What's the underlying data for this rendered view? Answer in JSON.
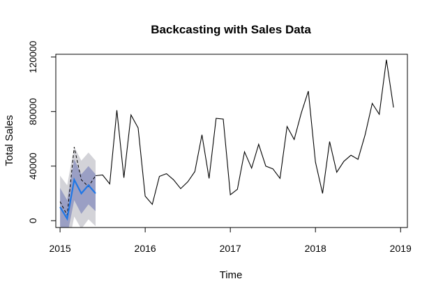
{
  "chart_data": {
    "type": "line",
    "title": "Backcasting with Sales Data",
    "xlabel": "Time",
    "ylabel": "Total Sales",
    "xlim": [
      2014.95,
      2019.08
    ],
    "ylim": [
      -5000,
      122000
    ],
    "x_ticks": [
      {
        "value": 2015,
        "label": "2015"
      },
      {
        "value": 2016,
        "label": "2016"
      },
      {
        "value": 2017,
        "label": "2017"
      },
      {
        "value": 2018,
        "label": "2018"
      },
      {
        "value": 2019,
        "label": "2019"
      }
    ],
    "y_ticks": [
      {
        "value": 0,
        "label": "0"
      },
      {
        "value": 40000,
        "label": "40000"
      },
      {
        "value": 80000,
        "label": "80000"
      },
      {
        "value": 120000,
        "label": "120000"
      }
    ],
    "colors": {
      "sales_line": "#000000",
      "backcast_line": "#1f77e6",
      "dashed_line": "#000000",
      "band_80": "#9a9fc4",
      "band_95": "#d3d3d8",
      "axis": "#000000"
    },
    "series": [
      {
        "style": "solid-black",
        "x": [
          2015.4167,
          2015.5,
          2015.5833,
          2015.6667,
          2015.75,
          2015.8333,
          2015.9167,
          2016.0,
          2016.0833,
          2016.1667,
          2016.25,
          2016.3333,
          2016.4167,
          2016.5,
          2016.5833,
          2016.6667,
          2016.75,
          2016.8333,
          2016.9167,
          2017.0,
          2017.0833,
          2017.1667,
          2017.25,
          2017.3333,
          2017.4167,
          2017.5,
          2017.5833,
          2017.6667,
          2017.75,
          2017.8333,
          2017.9167,
          2018.0,
          2018.0833,
          2018.1667,
          2018.25,
          2018.3333,
          2018.4167,
          2018.5,
          2018.5833,
          2018.6667,
          2018.75,
          2018.8333,
          2018.9167
        ],
        "y": [
          33000,
          33500,
          27000,
          81000,
          31500,
          77500,
          68000,
          18000,
          12000,
          32500,
          34500,
          30000,
          23500,
          28500,
          36000,
          63000,
          31000,
          75000,
          74500,
          19000,
          23000,
          50500,
          38500,
          56000,
          40000,
          38000,
          31000,
          69000,
          59500,
          79000,
          95000,
          43000,
          20000,
          58000,
          35500,
          43500,
          48000,
          45000,
          63000,
          86000,
          78000,
          118000,
          83000
        ]
      },
      {
        "style": "dashed-black",
        "x": [
          2015.0,
          2015.0833,
          2015.1667,
          2015.25,
          2015.3333,
          2015.4167
        ],
        "y": [
          14000,
          4000,
          54000,
          30000,
          25000,
          33000
        ]
      },
      {
        "style": "solid-blue",
        "x": [
          2015.0,
          2015.0833,
          2015.1667,
          2015.25,
          2015.3333,
          2015.4167
        ],
        "y": [
          10000,
          1500,
          30000,
          20000,
          26000,
          20000
        ]
      }
    ],
    "bands": [
      {
        "level": 95,
        "x": [
          2015.0,
          2015.0833,
          2015.1667,
          2015.25,
          2015.3333,
          2015.4167
        ],
        "lower": [
          -16000,
          -23000,
          3000,
          -6000,
          1000,
          -4000
        ],
        "upper": [
          33000,
          26000,
          54000,
          44000,
          50000,
          44000
        ]
      },
      {
        "level": 80,
        "x": [
          2015.0,
          2015.0833,
          2015.1667,
          2015.25,
          2015.3333,
          2015.4167
        ],
        "lower": [
          -4000,
          -11000,
          15000,
          5000,
          12000,
          7000
        ],
        "upper": [
          24000,
          15000,
          45000,
          34000,
          40000,
          34000
        ]
      }
    ]
  }
}
